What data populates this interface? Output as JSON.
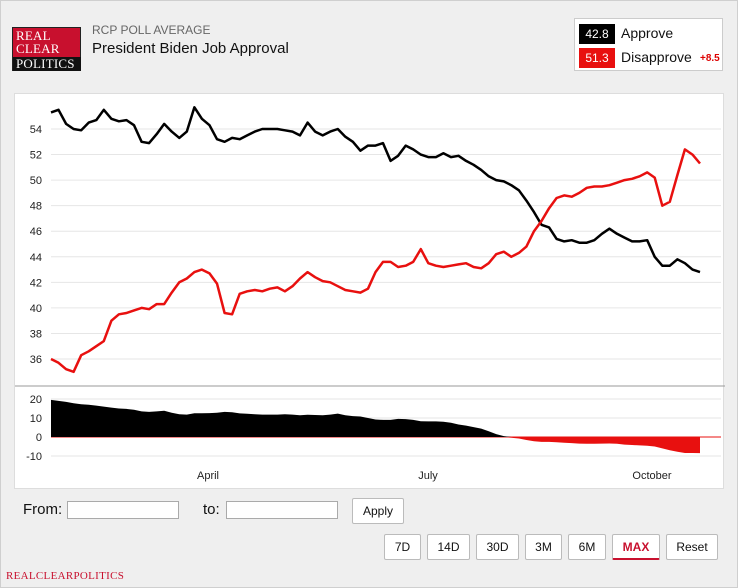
{
  "header": {
    "logo_lines": [
      "REAL",
      "CLEAR",
      "POLITICS"
    ],
    "supertitle": "RCP POLL AVERAGE",
    "title": "President Biden Job Approval"
  },
  "legend": {
    "approve": {
      "value": "42.8",
      "label": "Approve",
      "color": "#000000"
    },
    "disapprove": {
      "value": "51.3",
      "label": "Disapprove",
      "color": "#e8100f",
      "spread": "+8.5"
    }
  },
  "chart_data": [
    {
      "type": "line",
      "title": "",
      "xlabel": "",
      "ylabel": "",
      "x_tick_labels": [
        "April",
        "July",
        "October"
      ],
      "y_ticks": [
        36,
        38,
        40,
        42,
        44,
        46,
        48,
        50,
        52,
        54
      ],
      "ylim": [
        35,
        56
      ],
      "grid": true,
      "series": [
        {
          "name": "Approve",
          "color": "#000000",
          "values": [
            55.3,
            55.5,
            54.4,
            54.0,
            53.9,
            54.5,
            54.7,
            55.5,
            54.8,
            54.6,
            54.7,
            54.3,
            53.0,
            52.9,
            53.6,
            54.4,
            53.8,
            53.3,
            53.8,
            55.7,
            54.8,
            54.3,
            53.2,
            53.0,
            53.3,
            53.2,
            53.5,
            53.8,
            54.0,
            54.0,
            54.0,
            53.9,
            53.8,
            53.5,
            54.5,
            53.8,
            53.5,
            53.8,
            54.0,
            53.4,
            53.0,
            52.3,
            52.7,
            52.7,
            52.9,
            51.5,
            51.9,
            52.7,
            52.4,
            52.0,
            51.8,
            51.8,
            52.1,
            51.8,
            51.9,
            51.5,
            51.2,
            50.8,
            50.3,
            50.0,
            49.9,
            49.6,
            49.2,
            48.4,
            47.5,
            46.5,
            46.3,
            45.4,
            45.2,
            45.3,
            45.1,
            45.1,
            45.3,
            45.8,
            46.2,
            45.8,
            45.5,
            45.2,
            45.2,
            45.3,
            44.0,
            43.3,
            43.3,
            43.8,
            43.5,
            43.0,
            42.8
          ]
        },
        {
          "name": "Disapprove",
          "color": "#e8100f",
          "values": [
            36.0,
            35.7,
            35.2,
            35.0,
            36.3,
            36.6,
            37.0,
            37.4,
            39.0,
            39.5,
            39.6,
            39.8,
            40.0,
            39.9,
            40.3,
            40.3,
            41.2,
            42.0,
            42.3,
            42.8,
            43.0,
            42.7,
            41.9,
            39.6,
            39.5,
            41.1,
            41.3,
            41.4,
            41.3,
            41.5,
            41.6,
            41.3,
            41.7,
            42.3,
            42.8,
            42.4,
            42.1,
            42.0,
            41.7,
            41.4,
            41.3,
            41.2,
            41.5,
            42.8,
            43.6,
            43.6,
            43.2,
            43.3,
            43.6,
            44.6,
            43.5,
            43.3,
            43.2,
            43.3,
            43.4,
            43.5,
            43.2,
            43.1,
            43.5,
            44.2,
            44.4,
            44.0,
            44.3,
            44.8,
            46.0,
            46.8,
            47.8,
            48.6,
            48.8,
            48.7,
            49.0,
            49.4,
            49.5,
            49.5,
            49.6,
            49.8,
            50.0,
            50.1,
            50.3,
            50.6,
            50.2,
            48.0,
            48.3,
            50.4,
            52.4,
            52.0,
            51.3
          ]
        }
      ]
    },
    {
      "type": "area",
      "title": "",
      "xlabel": "",
      "ylabel": "",
      "y_ticks": [
        -10,
        0,
        10,
        20
      ],
      "ylim": [
        -12,
        22
      ],
      "series": [
        {
          "name": "Spread",
          "positive_color": "#000000",
          "negative_color": "#e8100f",
          "values": [
            19.5,
            19.0,
            18.5,
            17.8,
            17.2,
            17.0,
            16.5,
            16.0,
            15.5,
            15.0,
            14.8,
            14.3,
            13.5,
            13.2,
            13.5,
            13.8,
            12.8,
            12.0,
            11.8,
            12.5,
            12.5,
            12.6,
            12.8,
            13.2,
            13.0,
            12.4,
            12.2,
            12.0,
            11.8,
            11.8,
            11.8,
            12.0,
            11.8,
            11.4,
            11.7,
            11.6,
            11.4,
            11.8,
            12.3,
            11.4,
            11.0,
            10.8,
            10.0,
            9.2,
            9.0,
            9.0,
            9.5,
            9.4,
            9.0,
            8.3,
            8.2,
            8.2,
            8.0,
            7.5,
            6.6,
            6.0,
            5.2,
            4.4,
            3.0,
            1.5,
            0.5,
            -0.4,
            -0.8,
            -1.6,
            -2.2,
            -2.6,
            -2.6,
            -2.8,
            -3.0,
            -3.2,
            -3.5,
            -3.6,
            -3.6,
            -3.5,
            -3.4,
            -3.6,
            -4.0,
            -4.2,
            -4.4,
            -4.6,
            -5.0,
            -6.0,
            -7.0,
            -7.8,
            -8.4,
            -8.4,
            -8.5
          ]
        }
      ]
    }
  ],
  "controls": {
    "from_label": "From:",
    "to_label": "to:",
    "from_value": "",
    "to_value": "",
    "apply_label": "Apply",
    "ranges": [
      "7D",
      "14D",
      "30D",
      "3M",
      "6M",
      "MAX"
    ],
    "active_range": "MAX",
    "reset_label": "Reset"
  },
  "footer": {
    "text": "REALCLEARPOLITICS"
  }
}
